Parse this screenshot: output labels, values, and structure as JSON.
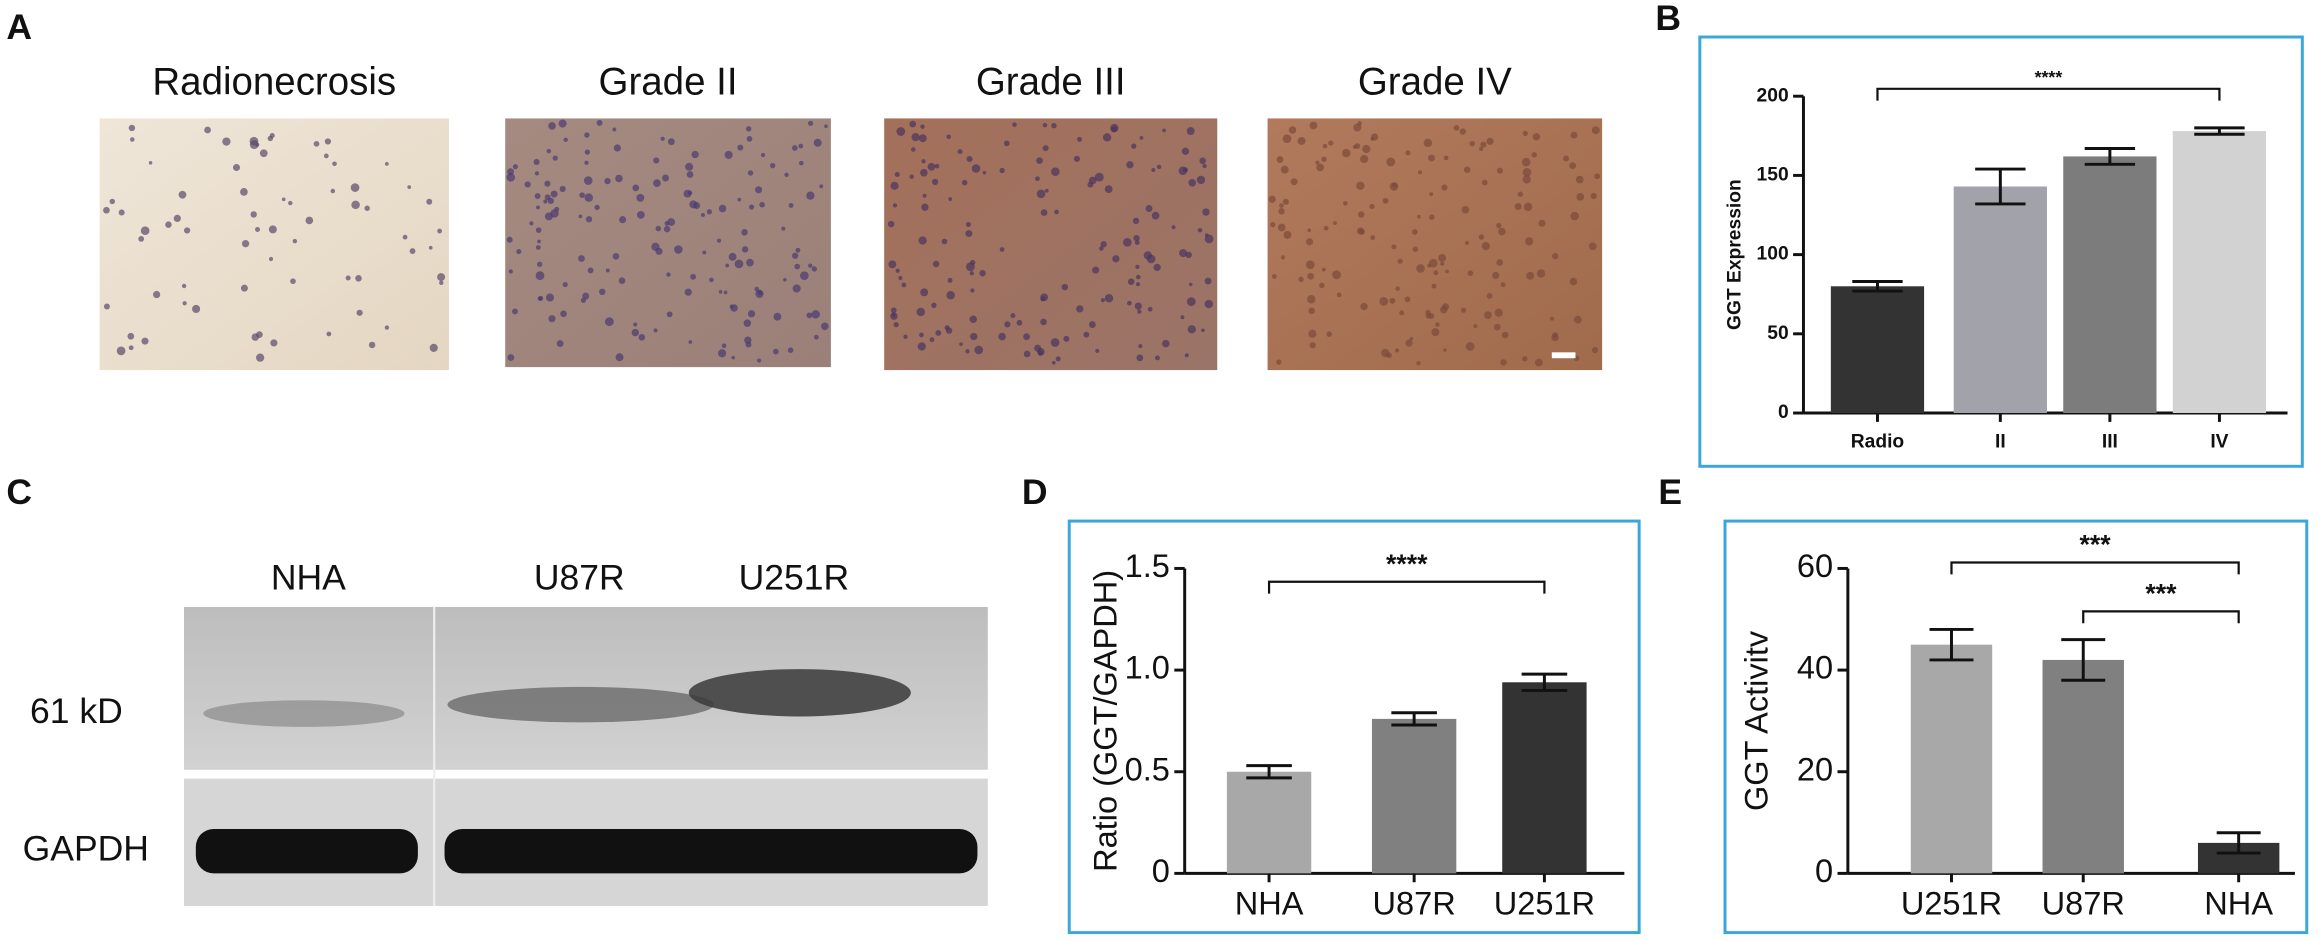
{
  "panel_a": {
    "label": "A",
    "images": [
      {
        "title": "Radionecrosis"
      },
      {
        "title": "Grade II"
      },
      {
        "title": "Grade III"
      },
      {
        "title": "Grade IV"
      }
    ]
  },
  "panel_c": {
    "label": "C",
    "lanes": [
      "NHA",
      "U87R",
      "U251R"
    ],
    "rows": [
      "61 kD",
      "GAPDH"
    ]
  },
  "chart_data": [
    {
      "type": "bar",
      "label": "B",
      "ylabel": "GGT Expression",
      "categories": [
        "Radio",
        "II",
        "III",
        "IV"
      ],
      "values": [
        80,
        143,
        162,
        178
      ],
      "errors": [
        3,
        11,
        5,
        2
      ],
      "colors": [
        "#333333",
        "#a2a2aa",
        "#7c7c7c",
        "#d2d2d2"
      ],
      "ylim": [
        0,
        200
      ],
      "yticks": [
        0,
        50,
        100,
        150,
        200
      ],
      "annotations": [
        {
          "text": "****",
          "between": [
            "Radio",
            "IV"
          ]
        }
      ]
    },
    {
      "type": "bar",
      "label": "D",
      "ylabel": "Ratio (GGT/GAPDH)",
      "categories": [
        "NHA",
        "U87R",
        "U251R"
      ],
      "values": [
        0.5,
        0.76,
        0.94
      ],
      "errors": [
        0.03,
        0.03,
        0.04
      ],
      "colors": [
        "#a8a8a8",
        "#808080",
        "#333333"
      ],
      "ylim": [
        0,
        1.5
      ],
      "yticks": [
        0,
        0.5,
        {
          "value": 1,
          "label": "1.0"
        },
        1.5
      ],
      "annotations": [
        {
          "text": "****",
          "between": [
            "NHA",
            "U251R"
          ]
        }
      ]
    },
    {
      "type": "bar",
      "label": "E",
      "ylabel": "GGT Activitv",
      "categories": [
        "U251R",
        "U87R",
        "NHA"
      ],
      "values": [
        45,
        42,
        6
      ],
      "errors": [
        3,
        4,
        2
      ],
      "colors": [
        "#a8a8a8",
        "#808080",
        "#333333"
      ],
      "ylim": [
        0,
        60
      ],
      "yticks": [
        0,
        20,
        40,
        60
      ],
      "annotations": [
        {
          "text": "***",
          "between": [
            "U251R",
            "NHA"
          ]
        },
        {
          "text": "***",
          "between": [
            "U87R",
            "NHA"
          ]
        }
      ]
    }
  ]
}
